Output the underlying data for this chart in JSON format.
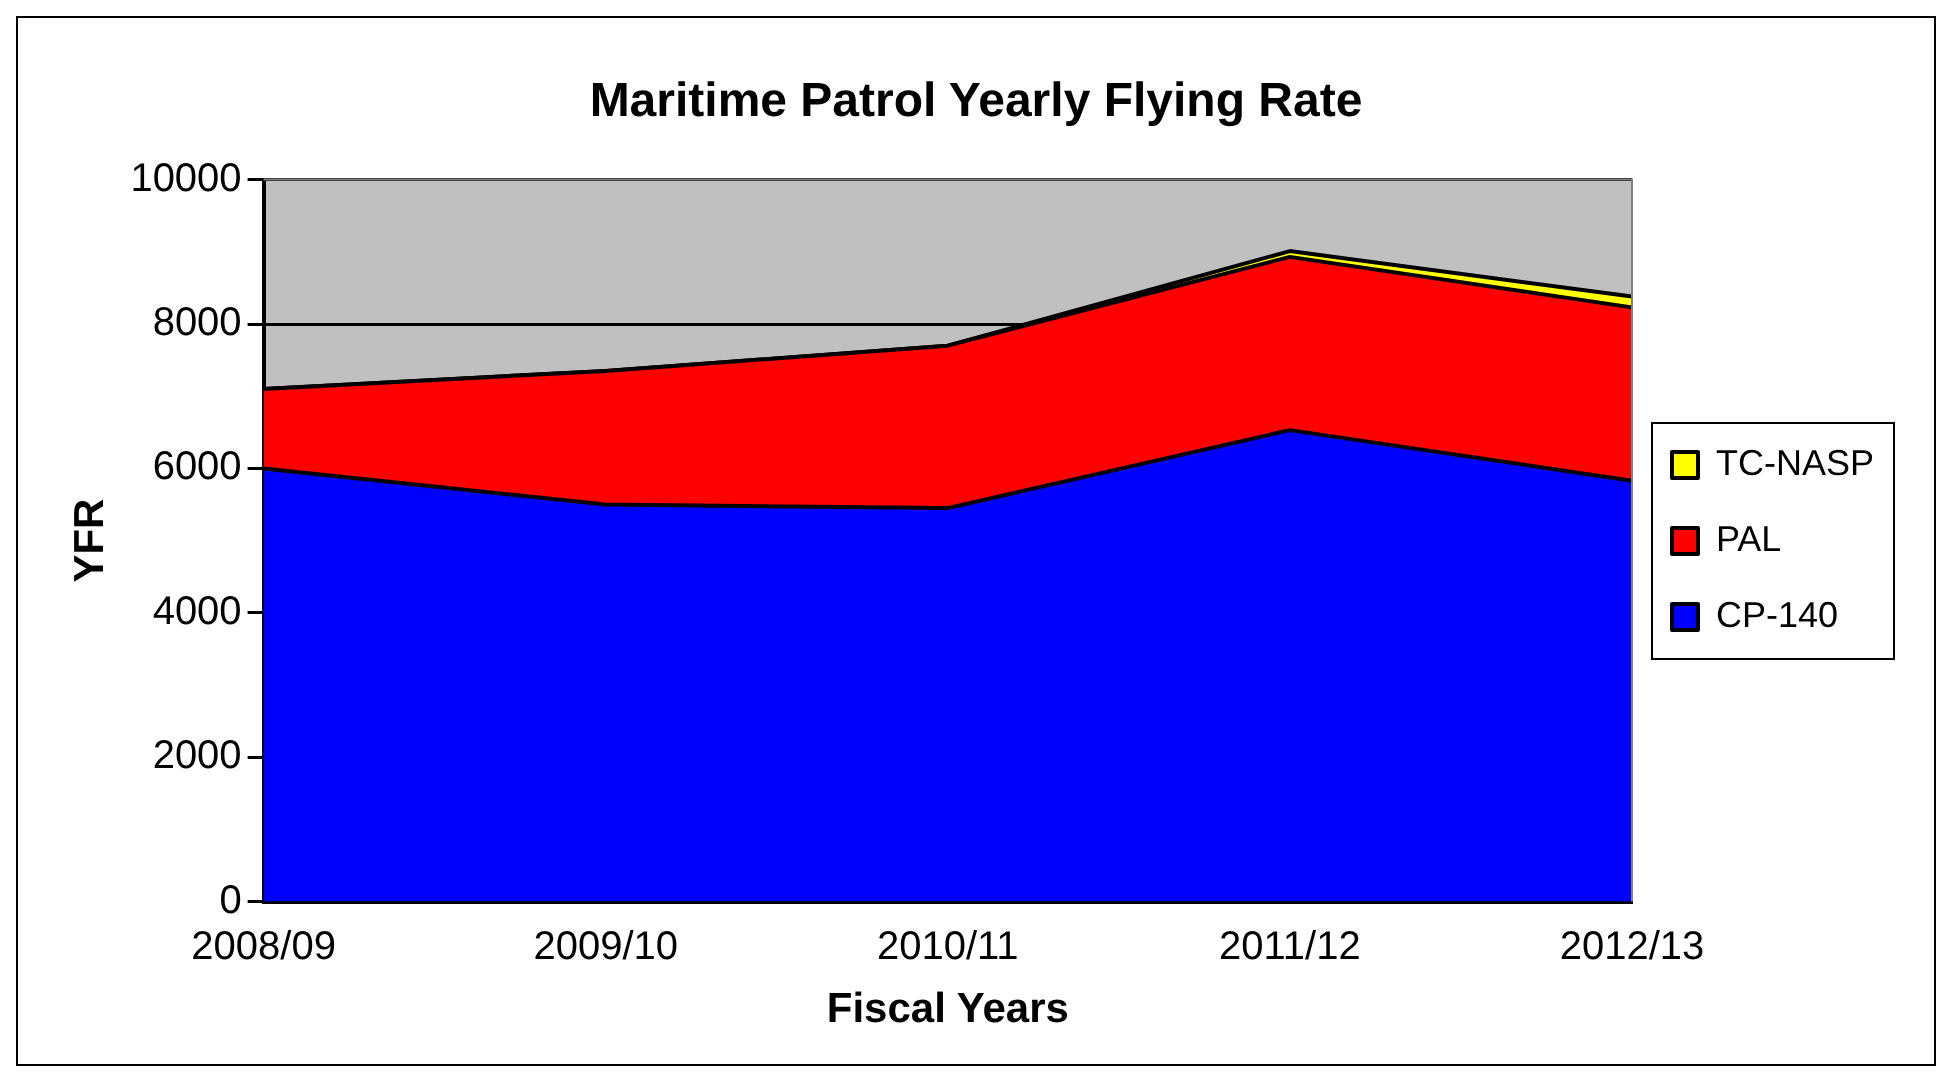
{
  "chart_data": {
    "type": "area",
    "title": "Maritime Patrol Yearly Flying Rate",
    "xlabel": "Fiscal Years",
    "ylabel": "YFR",
    "categories": [
      "2008/09",
      "2009/10",
      "2010/11",
      "2011/12",
      "2012/13"
    ],
    "stacked": true,
    "ylim": [
      0,
      10000
    ],
    "yticks": [
      0,
      2000,
      4000,
      6000,
      8000,
      10000
    ],
    "grid": "y",
    "legend": "right",
    "series": [
      {
        "name": "CP-140",
        "color": "#0000ff",
        "values": [
          6000,
          5500,
          5450,
          6530,
          5830
        ]
      },
      {
        "name": "PAL",
        "color": "#ff0000",
        "values": [
          1100,
          1850,
          2250,
          2400,
          2400
        ]
      },
      {
        "name": "TC-NASP",
        "color": "#ffff00",
        "values": [
          0,
          0,
          0,
          80,
          150
        ]
      }
    ]
  }
}
